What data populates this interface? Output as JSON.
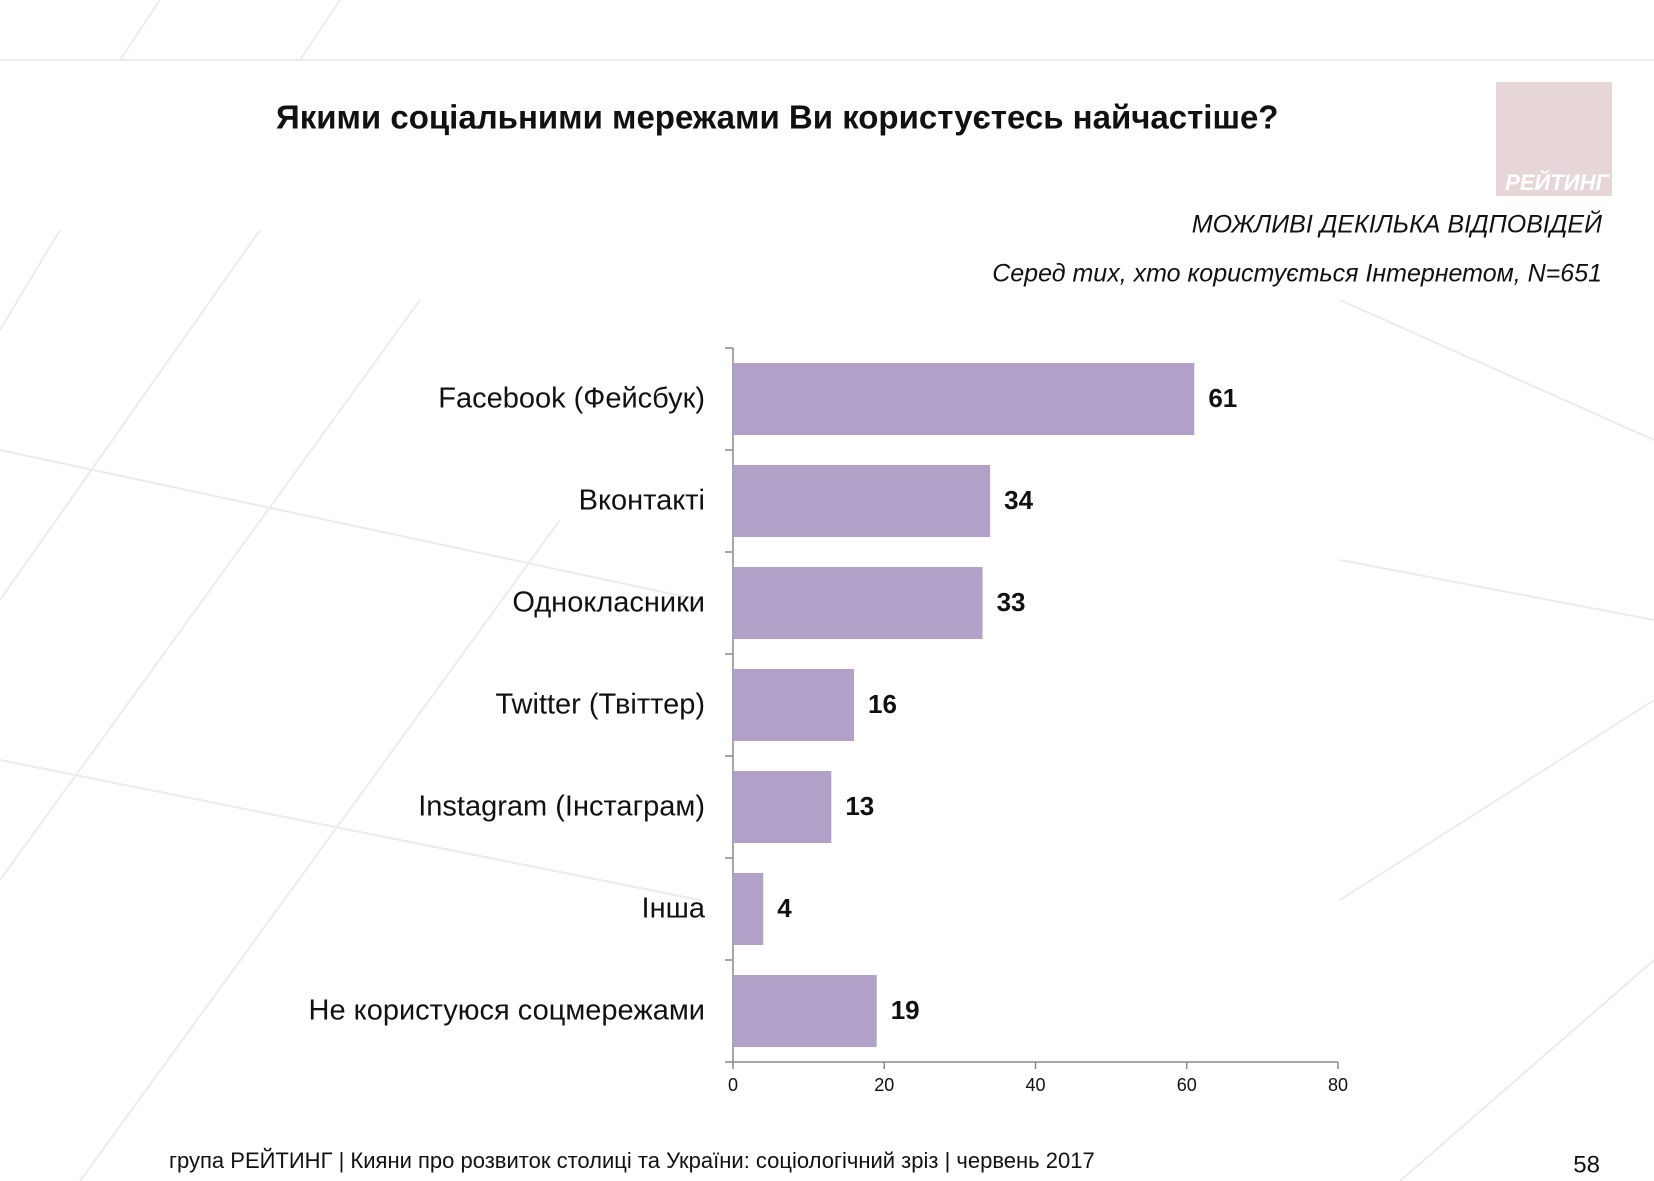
{
  "logo": "РЕЙТИНГ",
  "footer": "група РЕЙТИНГ  | Кияни про розвиток столиці та України: соціологічний зріз |  червень 2017",
  "page_number": "58",
  "chart_data": {
    "type": "bar",
    "orientation": "horizontal",
    "title": "Якими соціальними мережами Ви користуєтесь найчастіше?",
    "notes": [
      "МОЖЛИВІ ДЕКІЛЬКА ВІДПОВІДЕЙ",
      "Серед тих, хто користується Інтернетом, N=651"
    ],
    "categories": [
      "Facebook (Фейсбук)",
      "Вконтакті",
      "Однокласники",
      "Twitter (Твіттер)",
      "Instagram (Інстаграм)",
      "Інша",
      "Не користуюся соцмережами"
    ],
    "values": [
      61,
      34,
      33,
      16,
      13,
      4,
      19
    ],
    "color": "#b1a1c9",
    "xlim": [
      0,
      80
    ],
    "xticks": [
      0,
      20,
      40,
      60,
      80
    ]
  }
}
